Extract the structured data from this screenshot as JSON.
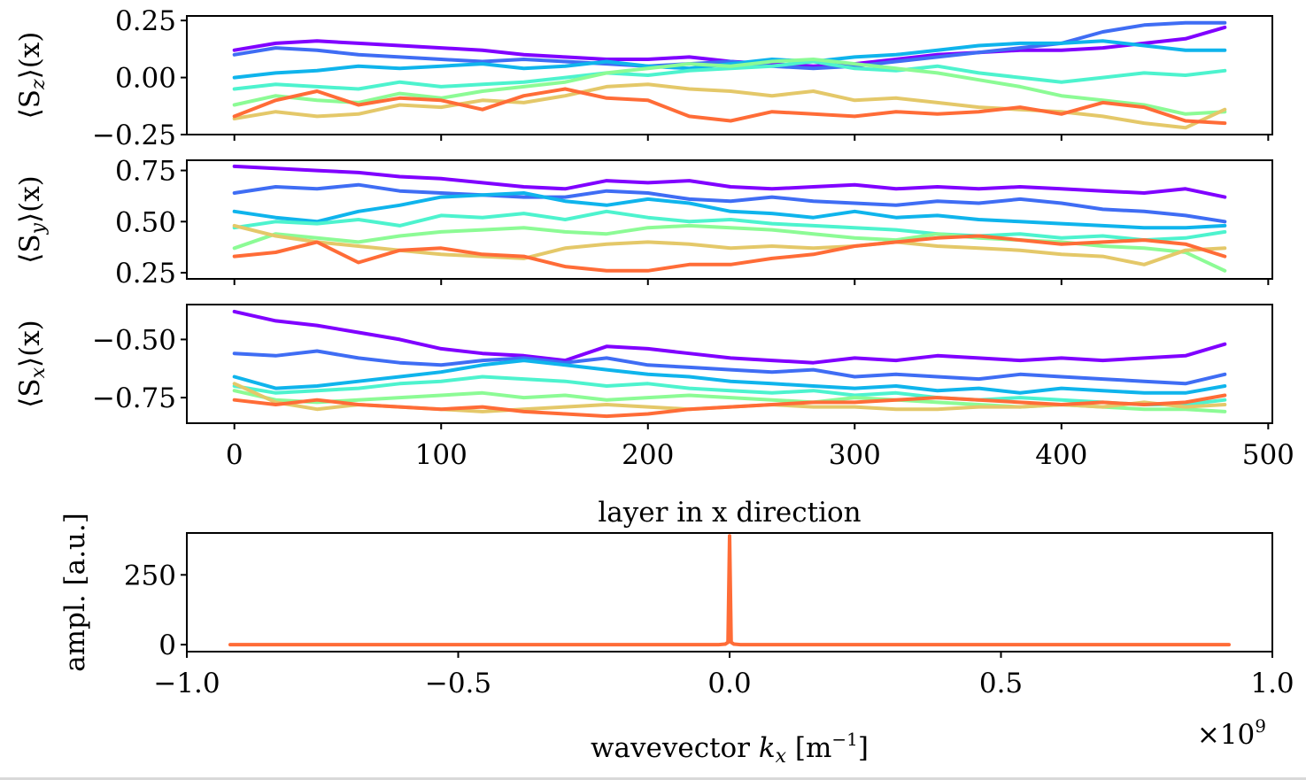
{
  "chart_data": [
    {
      "type": "line",
      "ylabel": "⟨S_z⟩(x)",
      "ylabel_main": "⟨S",
      "ylabel_sub": "z",
      "ylabel_tail": "⟩(x)",
      "xlim": [
        -23,
        502
      ],
      "ylim": [
        -0.25,
        0.27
      ],
      "yticks": [
        0.25,
        0.0,
        -0.25
      ],
      "ytick_labels": [
        "0.25",
        "0.00",
        "−0.25"
      ],
      "xticks": [
        0,
        100,
        200,
        300,
        400,
        500
      ],
      "x": [
        0,
        20,
        40,
        60,
        80,
        100,
        120,
        140,
        160,
        180,
        200,
        220,
        240,
        260,
        280,
        300,
        320,
        340,
        360,
        380,
        400,
        420,
        440,
        460,
        479
      ],
      "series": [
        {
          "color": "#8000ff",
          "values": [
            0.12,
            0.15,
            0.16,
            0.15,
            0.14,
            0.13,
            0.12,
            0.1,
            0.09,
            0.08,
            0.08,
            0.09,
            0.07,
            0.06,
            0.05,
            0.06,
            0.08,
            0.1,
            0.11,
            0.12,
            0.12,
            0.13,
            0.15,
            0.17,
            0.22
          ]
        },
        {
          "color": "#3f6df4",
          "values": [
            0.1,
            0.13,
            0.12,
            0.1,
            0.09,
            0.08,
            0.07,
            0.08,
            0.07,
            0.06,
            0.05,
            0.06,
            0.07,
            0.05,
            0.04,
            0.05,
            0.07,
            0.09,
            0.11,
            0.13,
            0.15,
            0.2,
            0.23,
            0.24,
            0.24
          ]
        },
        {
          "color": "#0fb4ec",
          "values": [
            0.0,
            0.02,
            0.03,
            0.05,
            0.04,
            0.05,
            0.06,
            0.04,
            0.05,
            0.07,
            0.05,
            0.04,
            0.06,
            0.08,
            0.07,
            0.09,
            0.1,
            0.12,
            0.14,
            0.15,
            0.15,
            0.16,
            0.14,
            0.12,
            0.12
          ]
        },
        {
          "color": "#4df3ce",
          "values": [
            -0.05,
            -0.03,
            -0.04,
            -0.05,
            -0.02,
            -0.04,
            -0.03,
            -0.02,
            0.0,
            0.02,
            0.01,
            0.03,
            0.04,
            0.05,
            0.07,
            0.04,
            0.03,
            0.05,
            0.02,
            0.0,
            -0.02,
            0.0,
            0.02,
            0.01,
            0.03
          ]
        },
        {
          "color": "#8cfb95",
          "values": [
            -0.12,
            -0.08,
            -0.1,
            -0.11,
            -0.07,
            -0.09,
            -0.06,
            -0.04,
            -0.02,
            0.02,
            0.04,
            0.06,
            0.05,
            0.07,
            0.08,
            0.06,
            0.04,
            0.02,
            -0.01,
            -0.04,
            -0.08,
            -0.1,
            -0.12,
            -0.16,
            -0.15
          ]
        },
        {
          "color": "#e4c869",
          "values": [
            -0.18,
            -0.15,
            -0.17,
            -0.16,
            -0.12,
            -0.13,
            -0.1,
            -0.11,
            -0.08,
            -0.04,
            -0.03,
            -0.05,
            -0.06,
            -0.08,
            -0.06,
            -0.1,
            -0.09,
            -0.11,
            -0.13,
            -0.14,
            -0.15,
            -0.17,
            -0.2,
            -0.22,
            -0.14
          ]
        },
        {
          "color": "#ff6c37",
          "values": [
            -0.17,
            -0.1,
            -0.06,
            -0.12,
            -0.09,
            -0.1,
            -0.14,
            -0.08,
            -0.05,
            -0.09,
            -0.1,
            -0.17,
            -0.19,
            -0.15,
            -0.16,
            -0.17,
            -0.15,
            -0.16,
            -0.15,
            -0.13,
            -0.16,
            -0.11,
            -0.13,
            -0.19,
            -0.2
          ]
        }
      ]
    },
    {
      "type": "line",
      "ylabel": "⟨S_y⟩(x)",
      "ylabel_main": "⟨S",
      "ylabel_sub": "y",
      "ylabel_tail": "⟩(x)",
      "xlim": [
        -23,
        502
      ],
      "ylim": [
        0.22,
        0.8
      ],
      "yticks": [
        0.75,
        0.5,
        0.25
      ],
      "ytick_labels": [
        "0.75",
        "0.50",
        "0.25"
      ],
      "xticks": [
        0,
        100,
        200,
        300,
        400,
        500
      ],
      "x": [
        0,
        20,
        40,
        60,
        80,
        100,
        120,
        140,
        160,
        180,
        200,
        220,
        240,
        260,
        280,
        300,
        320,
        340,
        360,
        380,
        400,
        420,
        440,
        460,
        479
      ],
      "series": [
        {
          "color": "#8000ff",
          "values": [
            0.77,
            0.76,
            0.75,
            0.74,
            0.72,
            0.71,
            0.69,
            0.67,
            0.66,
            0.7,
            0.69,
            0.7,
            0.67,
            0.66,
            0.67,
            0.68,
            0.66,
            0.67,
            0.66,
            0.67,
            0.66,
            0.65,
            0.64,
            0.66,
            0.62
          ]
        },
        {
          "color": "#3f6df4",
          "values": [
            0.64,
            0.67,
            0.66,
            0.68,
            0.65,
            0.64,
            0.63,
            0.62,
            0.62,
            0.65,
            0.64,
            0.61,
            0.6,
            0.62,
            0.6,
            0.59,
            0.58,
            0.6,
            0.59,
            0.61,
            0.59,
            0.56,
            0.55,
            0.53,
            0.5
          ]
        },
        {
          "color": "#0fb4ec",
          "values": [
            0.55,
            0.52,
            0.5,
            0.55,
            0.58,
            0.62,
            0.63,
            0.64,
            0.6,
            0.58,
            0.61,
            0.59,
            0.55,
            0.54,
            0.52,
            0.55,
            0.52,
            0.53,
            0.51,
            0.5,
            0.49,
            0.48,
            0.47,
            0.47,
            0.48
          ]
        },
        {
          "color": "#4df3ce",
          "values": [
            0.47,
            0.5,
            0.49,
            0.51,
            0.48,
            0.53,
            0.52,
            0.54,
            0.51,
            0.55,
            0.52,
            0.5,
            0.51,
            0.49,
            0.48,
            0.47,
            0.46,
            0.44,
            0.43,
            0.44,
            0.42,
            0.43,
            0.41,
            0.42,
            0.45
          ]
        },
        {
          "color": "#8cfb95",
          "values": [
            0.37,
            0.44,
            0.42,
            0.4,
            0.43,
            0.45,
            0.46,
            0.47,
            0.45,
            0.44,
            0.47,
            0.48,
            0.47,
            0.46,
            0.44,
            0.42,
            0.41,
            0.44,
            0.42,
            0.41,
            0.4,
            0.38,
            0.37,
            0.35,
            0.26
          ]
        },
        {
          "color": "#e4c869",
          "values": [
            0.48,
            0.43,
            0.4,
            0.38,
            0.36,
            0.34,
            0.33,
            0.32,
            0.37,
            0.39,
            0.4,
            0.39,
            0.37,
            0.38,
            0.37,
            0.38,
            0.4,
            0.38,
            0.37,
            0.36,
            0.34,
            0.33,
            0.29,
            0.36,
            0.37
          ]
        },
        {
          "color": "#ff6c37",
          "values": [
            0.33,
            0.35,
            0.4,
            0.3,
            0.36,
            0.37,
            0.34,
            0.33,
            0.28,
            0.26,
            0.26,
            0.29,
            0.29,
            0.32,
            0.34,
            0.38,
            0.4,
            0.42,
            0.43,
            0.41,
            0.39,
            0.4,
            0.41,
            0.39,
            0.33
          ]
        }
      ]
    },
    {
      "type": "line",
      "ylabel": "⟨S_x⟩(x)",
      "ylabel_main": "⟨S",
      "ylabel_sub": "x",
      "ylabel_tail": "⟩(x)",
      "xlim": [
        -23,
        502
      ],
      "ylim": [
        -0.86,
        -0.35
      ],
      "yticks": [
        -0.5,
        -0.75
      ],
      "ytick_labels": [
        "−0.50",
        "−0.75"
      ],
      "xticks": [
        0,
        100,
        200,
        300,
        400,
        500
      ],
      "xtick_labels": [
        "0",
        "100",
        "200",
        "300",
        "400",
        "500"
      ],
      "xlabel": "layer in x direction",
      "x": [
        0,
        20,
        40,
        60,
        80,
        100,
        120,
        140,
        160,
        180,
        200,
        220,
        240,
        260,
        280,
        300,
        320,
        340,
        360,
        380,
        400,
        420,
        440,
        460,
        479
      ],
      "series": [
        {
          "color": "#8000ff",
          "values": [
            -0.38,
            -0.42,
            -0.44,
            -0.47,
            -0.5,
            -0.54,
            -0.56,
            -0.57,
            -0.59,
            -0.53,
            -0.54,
            -0.56,
            -0.58,
            -0.59,
            -0.6,
            -0.58,
            -0.59,
            -0.57,
            -0.58,
            -0.59,
            -0.58,
            -0.59,
            -0.58,
            -0.57,
            -0.52
          ]
        },
        {
          "color": "#3f6df4",
          "values": [
            -0.56,
            -0.57,
            -0.55,
            -0.58,
            -0.6,
            -0.61,
            -0.59,
            -0.58,
            -0.6,
            -0.58,
            -0.61,
            -0.62,
            -0.63,
            -0.64,
            -0.63,
            -0.66,
            -0.65,
            -0.66,
            -0.67,
            -0.65,
            -0.66,
            -0.67,
            -0.68,
            -0.69,
            -0.65
          ]
        },
        {
          "color": "#0fb4ec",
          "values": [
            -0.66,
            -0.71,
            -0.7,
            -0.68,
            -0.66,
            -0.64,
            -0.61,
            -0.59,
            -0.61,
            -0.63,
            -0.65,
            -0.66,
            -0.68,
            -0.69,
            -0.7,
            -0.71,
            -0.7,
            -0.72,
            -0.71,
            -0.73,
            -0.71,
            -0.72,
            -0.73,
            -0.73,
            -0.7
          ]
        },
        {
          "color": "#4df3ce",
          "values": [
            -0.7,
            -0.73,
            -0.72,
            -0.71,
            -0.69,
            -0.68,
            -0.66,
            -0.67,
            -0.68,
            -0.7,
            -0.69,
            -0.71,
            -0.72,
            -0.73,
            -0.72,
            -0.74,
            -0.73,
            -0.75,
            -0.76,
            -0.75,
            -0.76,
            -0.77,
            -0.78,
            -0.78,
            -0.76
          ]
        },
        {
          "color": "#8cfb95",
          "values": [
            -0.72,
            -0.76,
            -0.77,
            -0.76,
            -0.75,
            -0.74,
            -0.73,
            -0.75,
            -0.74,
            -0.76,
            -0.75,
            -0.74,
            -0.75,
            -0.76,
            -0.77,
            -0.75,
            -0.76,
            -0.77,
            -0.78,
            -0.79,
            -0.78,
            -0.79,
            -0.8,
            -0.8,
            -0.81
          ]
        },
        {
          "color": "#e4c869",
          "values": [
            -0.69,
            -0.77,
            -0.8,
            -0.78,
            -0.79,
            -0.8,
            -0.81,
            -0.8,
            -0.79,
            -0.78,
            -0.79,
            -0.8,
            -0.79,
            -0.78,
            -0.79,
            -0.79,
            -0.8,
            -0.8,
            -0.79,
            -0.79,
            -0.78,
            -0.79,
            -0.77,
            -0.79,
            -0.78
          ]
        },
        {
          "color": "#ff6c37",
          "values": [
            -0.76,
            -0.78,
            -0.76,
            -0.78,
            -0.79,
            -0.8,
            -0.79,
            -0.81,
            -0.82,
            -0.83,
            -0.82,
            -0.8,
            -0.79,
            -0.78,
            -0.77,
            -0.77,
            -0.76,
            -0.75,
            -0.76,
            -0.77,
            -0.78,
            -0.77,
            -0.78,
            -0.77,
            -0.74
          ]
        }
      ]
    },
    {
      "type": "line",
      "ylabel": "ampl. [a.u.]",
      "xlabel": "wavevector k_x [m^-1]",
      "xlabel_pre": "wavevector ",
      "xlabel_k": "k",
      "xlabel_sub": "x",
      "xlabel_unit": " [m",
      "xlabel_exp": "−1",
      "xlabel_close": "]",
      "xlim": [
        -1.0,
        1.0
      ],
      "ylim": [
        -25,
        400
      ],
      "yticks": [
        250,
        0
      ],
      "ytick_labels": [
        "250",
        "0"
      ],
      "xticks": [
        -1.0,
        -0.5,
        0.0,
        0.5,
        1.0
      ],
      "xtick_labels": [
        "−1.0",
        "−0.5",
        "0.0",
        "0.5",
        "1.0"
      ],
      "offset_text": "×10",
      "offset_exp": "9",
      "x": [
        -0.92,
        -0.02,
        -0.008,
        -0.003,
        0.0,
        0.003,
        0.008,
        0.02,
        0.92
      ],
      "series": [
        {
          "color": "#ff6c37",
          "values": [
            0,
            0,
            2,
            8,
            390,
            8,
            2,
            0,
            0
          ]
        }
      ]
    }
  ]
}
